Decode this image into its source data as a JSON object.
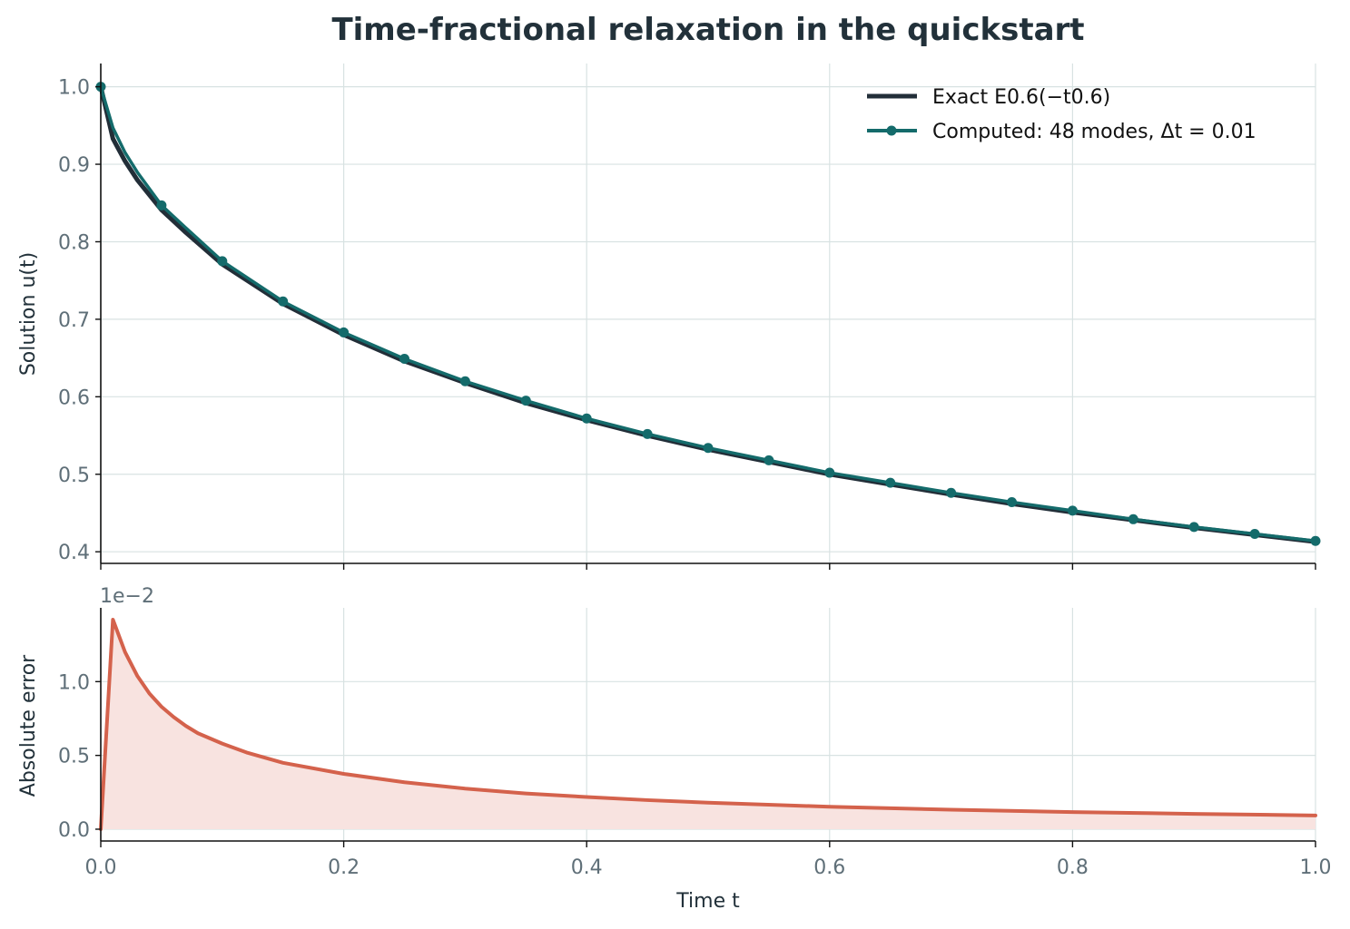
{
  "figure": {
    "title": "Time-fractional relaxation in the quickstart"
  },
  "colors": {
    "exact": "#222e38",
    "computed": "#146b6b",
    "error": "#d4624c",
    "error_fill": "#f8e3e0",
    "grid": "#d8e2e2"
  },
  "chart_data": [
    {
      "type": "line",
      "panel": "top",
      "xlabel": "",
      "ylabel": "Solution u(t)",
      "xlim": [
        0,
        1
      ],
      "ylim": [
        0.385,
        1.03
      ],
      "xticks": [
        0.0,
        0.2,
        0.4,
        0.6,
        0.8,
        1.0
      ],
      "yticks": [
        0.4,
        0.5,
        0.6,
        0.7,
        0.8,
        0.9,
        1.0
      ],
      "ytick_labels": [
        "0.4",
        "0.5",
        "0.6",
        "0.7",
        "0.8",
        "0.9",
        "1.0"
      ],
      "grid": true,
      "legend_position": "top-right",
      "series": [
        {
          "name": "Exact E0.6(−t0.6)",
          "style": "line",
          "x": [
            0,
            0.01,
            0.02,
            0.03,
            0.05,
            0.07,
            0.1,
            0.15,
            0.2,
            0.25,
            0.3,
            0.35,
            0.4,
            0.45,
            0.5,
            0.55,
            0.6,
            0.65,
            0.7,
            0.75,
            0.8,
            0.85,
            0.9,
            0.95,
            1.0
          ],
          "y": [
            1.0,
            0.933,
            0.904,
            0.88,
            0.841,
            0.812,
            0.771,
            0.72,
            0.68,
            0.646,
            0.618,
            0.592,
            0.57,
            0.55,
            0.532,
            0.516,
            0.5,
            0.487,
            0.474,
            0.462,
            0.451,
            0.441,
            0.431,
            0.422,
            0.413
          ]
        },
        {
          "name": "Computed: 48 modes, Δt = 0.01",
          "style": "line+markers",
          "x": [
            0,
            0.01,
            0.02,
            0.03,
            0.05,
            0.07,
            0.1,
            0.15,
            0.2,
            0.25,
            0.3,
            0.35,
            0.4,
            0.45,
            0.5,
            0.55,
            0.6,
            0.65,
            0.7,
            0.75,
            0.8,
            0.85,
            0.9,
            0.95,
            1.0
          ],
          "y": [
            1.0,
            0.947,
            0.915,
            0.89,
            0.847,
            0.818,
            0.775,
            0.723,
            0.683,
            0.649,
            0.62,
            0.595,
            0.572,
            0.552,
            0.534,
            0.518,
            0.502,
            0.489,
            0.476,
            0.464,
            0.453,
            0.442,
            0.432,
            0.423,
            0.414
          ],
          "marker_x": [
            0,
            0.05,
            0.1,
            0.15,
            0.2,
            0.25,
            0.3,
            0.35,
            0.4,
            0.45,
            0.5,
            0.55,
            0.6,
            0.65,
            0.7,
            0.75,
            0.8,
            0.85,
            0.9,
            0.95,
            1.0
          ],
          "marker_y": [
            1.0,
            0.847,
            0.775,
            0.723,
            0.683,
            0.649,
            0.62,
            0.595,
            0.572,
            0.552,
            0.534,
            0.518,
            0.502,
            0.489,
            0.476,
            0.464,
            0.453,
            0.442,
            0.432,
            0.423,
            0.414
          ]
        }
      ]
    },
    {
      "type": "area",
      "panel": "bottom",
      "xlabel": "Time t",
      "ylabel": "Absolute error",
      "offset_label": "1e−2",
      "xlim": [
        0,
        1
      ],
      "ylim": [
        -0.08,
        1.5
      ],
      "xticks": [
        0.0,
        0.2,
        0.4,
        0.6,
        0.8,
        1.0
      ],
      "xtick_labels": [
        "0.0",
        "0.2",
        "0.4",
        "0.6",
        "0.8",
        "1.0"
      ],
      "yticks": [
        0.0,
        0.5,
        1.0
      ],
      "ytick_labels": [
        "0.0",
        "0.5",
        "1.0"
      ],
      "grid": true,
      "series": [
        {
          "name": "",
          "x": [
            0,
            0.01,
            0.02,
            0.03,
            0.04,
            0.05,
            0.06,
            0.07,
            0.08,
            0.1,
            0.12,
            0.15,
            0.2,
            0.25,
            0.3,
            0.35,
            0.4,
            0.45,
            0.5,
            0.6,
            0.7,
            0.8,
            0.9,
            1.0
          ],
          "y": [
            0.0,
            1.42,
            1.2,
            1.04,
            0.92,
            0.83,
            0.76,
            0.7,
            0.65,
            0.58,
            0.52,
            0.45,
            0.375,
            0.318,
            0.275,
            0.242,
            0.218,
            0.197,
            0.18,
            0.152,
            0.132,
            0.116,
            0.104,
            0.093
          ]
        }
      ]
    }
  ]
}
